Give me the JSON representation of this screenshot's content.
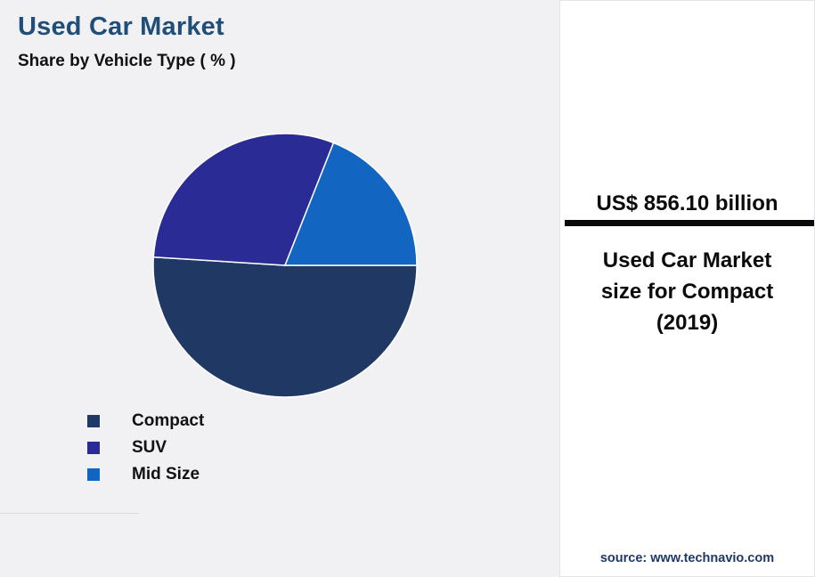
{
  "chart_data": {
    "type": "pie",
    "title": "Used Car Market",
    "subtitle": "Share by Vehicle Type ( % )",
    "legend_position": "bottom-left",
    "slices": [
      {
        "label": "Compact",
        "value": 51,
        "color": "#1f3864"
      },
      {
        "label": "SUV",
        "value": 30,
        "color": "#2b2b96"
      },
      {
        "label": "Mid Size",
        "value": 19,
        "color": "#1266c2"
      }
    ]
  },
  "panel": {
    "highlight_value": "US$ 856.10 billion",
    "caption": "Used Car Market size for Compact (2019)",
    "source": "source: www.technavio.com"
  },
  "colors": {
    "title": "#1f4e79",
    "background": "#f1f1f4",
    "panel_background": "#ffffff",
    "bar": "#0a0a0a"
  }
}
